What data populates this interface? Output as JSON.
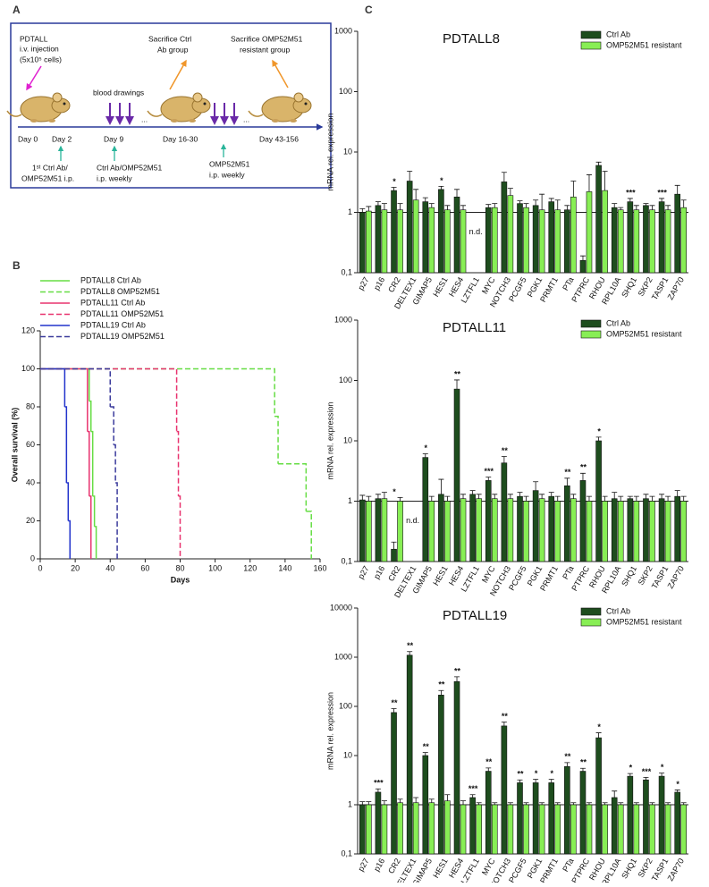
{
  "panel_labels": [
    "A",
    "B",
    "C"
  ],
  "diagram": {
    "injection": [
      "PDTALL",
      "i.v. injection",
      "(5x10⁵ cells)"
    ],
    "days": [
      "Day 0",
      "Day 2",
      "Day 9",
      "Day 16-30",
      "Day 43-156"
    ],
    "blood": "blood drawings",
    "ellipsis": [
      "...",
      "..."
    ],
    "sacrifice_ctrl": [
      "Sacrifice Ctrl",
      "Ab group"
    ],
    "sacrifice_omp": [
      "Sacrifice OMP52M51",
      "resistant group"
    ],
    "treatment_first": [
      "1ˢᵗ Ctrl Ab/",
      "OMP52M51 i.p."
    ],
    "treatment_weekly": [
      "Ctrl Ab/OMP52M51",
      "i.p. weekly"
    ],
    "treatment_omp": [
      "OMP52M51",
      "i.p. weekly"
    ]
  },
  "chart_data": [
    {
      "type": "line",
      "step": true,
      "xlabel": "Days",
      "ylabel": "Overall survival (%)",
      "xlim": [
        0,
        160
      ],
      "xticks": [
        0,
        20,
        40,
        60,
        80,
        100,
        120,
        140,
        160
      ],
      "ylim": [
        0,
        120
      ],
      "yticks": [
        0,
        20,
        40,
        60,
        80,
        100,
        120
      ],
      "series": [
        {
          "name": "PDTALL8 Ctrl Ab",
          "color": "#66dd44",
          "dashed": false,
          "x": [
            0,
            28,
            29,
            30,
            31,
            32
          ],
          "y": [
            100,
            83,
            67,
            33,
            17,
            0
          ]
        },
        {
          "name": "PDTALL8 OMP52M51",
          "color": "#66dd44",
          "dashed": true,
          "x": [
            0,
            134,
            136,
            152,
            155
          ],
          "y": [
            100,
            75,
            50,
            25,
            0
          ]
        },
        {
          "name": "PDTALL11 Ctrl Ab",
          "color": "#e8336f",
          "dashed": false,
          "x": [
            0,
            27,
            28,
            29
          ],
          "y": [
            100,
            67,
            33,
            0
          ]
        },
        {
          "name": "PDTALL11 OMP52M51",
          "color": "#e8336f",
          "dashed": true,
          "x": [
            0,
            78,
            79,
            80
          ],
          "y": [
            100,
            67,
            33,
            0
          ]
        },
        {
          "name": "PDTALL19 Ctrl Ab",
          "color": "#2233cc",
          "dashed": false,
          "x": [
            0,
            14,
            15,
            16,
            17
          ],
          "y": [
            100,
            80,
            40,
            20,
            0
          ]
        },
        {
          "name": "PDTALL19 OMP52M51",
          "color": "#3b3b9c",
          "dashed": true,
          "x": [
            0,
            40,
            42,
            43,
            44
          ],
          "y": [
            100,
            80,
            60,
            40,
            0
          ]
        }
      ]
    },
    {
      "type": "bar",
      "title": "PDTALL8",
      "ylabel": "mRNA rel. expression",
      "log_scale": true,
      "reference_line": 1,
      "ylim": [
        0.1,
        1000
      ],
      "yticks": [
        {
          "value": 0.1,
          "label": "0,1"
        },
        1,
        10,
        100,
        1000
      ],
      "categories": [
        "p27",
        "p16",
        "CR2",
        "DELTEX1",
        "GIMAP5",
        "HES1",
        "HES4",
        "LZTFL1",
        "MYC",
        "NOTCH3",
        "PCGF5",
        "PGK1",
        "PRMT1",
        "PTa",
        "PTPRC",
        "RHOU",
        "RPL10A",
        "SHQ1",
        "SKP2",
        "TASP1",
        "ZAP70"
      ],
      "series": [
        {
          "name": "Ctrl Ab",
          "color": "#1e4d1e",
          "values": [
            1.0,
            1.3,
            2.3,
            3.3,
            1.5,
            2.4,
            1.8,
            null,
            1.2,
            3.2,
            1.4,
            1.3,
            1.5,
            1.1,
            0.16,
            6.0,
            1.2,
            1.5,
            1.3,
            1.5,
            2.0
          ],
          "errors": [
            0.15,
            0.2,
            0.3,
            1.5,
            0.25,
            0.3,
            0.6,
            null,
            0.15,
            1.4,
            0.15,
            0.3,
            0.2,
            0.2,
            0.03,
            0.8,
            0.2,
            0.2,
            0.1,
            0.2,
            0.8
          ]
        },
        {
          "name": "OMP52M51 resistant",
          "color": "#88ee55",
          "values": [
            1.05,
            1.1,
            1.1,
            1.6,
            1.2,
            1.1,
            1.1,
            null,
            1.2,
            1.9,
            1.2,
            1.1,
            1.1,
            1.8,
            2.2,
            2.3,
            1.1,
            1.1,
            1.1,
            1.1,
            1.2
          ],
          "errors": [
            0.2,
            0.3,
            0.3,
            0.8,
            0.2,
            0.2,
            0.2,
            null,
            0.2,
            0.6,
            0.2,
            0.9,
            0.5,
            1.5,
            2.0,
            2.5,
            0.1,
            0.2,
            0.2,
            0.2,
            0.4
          ]
        }
      ],
      "significance": [
        null,
        null,
        "*",
        null,
        null,
        "*",
        null,
        null,
        null,
        null,
        null,
        null,
        null,
        null,
        null,
        null,
        null,
        "***",
        null,
        "***",
        null
      ],
      "annotations": [
        {
          "text": "n.d.",
          "category": "LZTFL1"
        }
      ]
    },
    {
      "type": "bar",
      "title": "PDTALL11",
      "ylabel": "mRNA rel. expression",
      "log_scale": true,
      "reference_line": 1,
      "ylim": [
        0.1,
        1000
      ],
      "yticks": [
        {
          "value": 0.1,
          "label": "0,1"
        },
        1,
        10,
        100,
        1000
      ],
      "categories": [
        "p27",
        "p16",
        "CR2",
        "DELTEX1",
        "GIMAP5",
        "HES1",
        "HES4",
        "LZTFL1",
        "MYC",
        "NOTCH3",
        "PCGF5",
        "PGK1",
        "PRMT1",
        "PTa",
        "PTPRC",
        "RHOU",
        "RPL10A",
        "SHQ1",
        "SKP2",
        "TASP1",
        "ZAP70"
      ],
      "series": [
        {
          "name": "Ctrl Ab",
          "color": "#1e4d1e",
          "values": [
            1.05,
            1.1,
            0.16,
            null,
            5.3,
            1.3,
            72,
            1.3,
            2.2,
            4.3,
            1.2,
            1.5,
            1.2,
            1.8,
            2.2,
            10,
            1.1,
            1.1,
            1.1,
            1.1,
            1.2
          ],
          "errors": [
            0.2,
            0.2,
            0.05,
            null,
            0.8,
            1.0,
            30,
            0.2,
            0.3,
            1.2,
            0.2,
            0.6,
            0.2,
            0.6,
            0.7,
            1.5,
            0.3,
            0.1,
            0.2,
            0.2,
            0.3
          ]
        },
        {
          "name": "OMP52M51 resistant",
          "color": "#88ee55",
          "values": [
            1.0,
            1.1,
            1.0,
            null,
            1.0,
            1.0,
            1.1,
            1.1,
            1.1,
            1.1,
            1.0,
            1.1,
            1.0,
            1.1,
            1.0,
            1.0,
            1.0,
            1.0,
            1.0,
            1.0,
            1.0
          ],
          "errors": [
            0.2,
            0.3,
            0.15,
            null,
            0.2,
            0.2,
            0.2,
            0.2,
            0.2,
            0.2,
            0.2,
            0.2,
            0.2,
            0.2,
            0.2,
            0.2,
            0.2,
            0.2,
            0.2,
            0.2,
            0.2
          ]
        }
      ],
      "significance": [
        null,
        null,
        "*",
        null,
        "*",
        null,
        "**",
        null,
        "***",
        "**",
        null,
        null,
        null,
        "**",
        "**",
        "*",
        null,
        null,
        null,
        null,
        null
      ],
      "annotations": [
        {
          "text": "n.d.",
          "category": "DELTEX1"
        }
      ]
    },
    {
      "type": "bar",
      "title": "PDTALL19",
      "ylabel": "mRNA rel. expression",
      "log_scale": true,
      "reference_line": 1,
      "ylim": [
        0.1,
        10000
      ],
      "yticks": [
        {
          "value": 0.1,
          "label": "0,1"
        },
        1,
        10,
        100,
        1000,
        10000
      ],
      "categories": [
        "p27",
        "p16",
        "CR2",
        "DELTEX1",
        "GIMAP5",
        "HES1",
        "HES4",
        "LZTFL1",
        "MYC",
        "NOTCH3",
        "PCGF5",
        "PGK1",
        "PRMT1",
        "PTa",
        "PTPRC",
        "RHOU",
        "RPL10A",
        "SHQ1",
        "SKP2",
        "TASP1",
        "ZAP70"
      ],
      "series": [
        {
          "name": "Ctrl Ab",
          "color": "#1e4d1e",
          "values": [
            1.0,
            1.8,
            75,
            1100,
            10,
            170,
            320,
            1.4,
            4.8,
            40,
            2.8,
            2.8,
            2.8,
            6.0,
            4.8,
            23,
            1.4,
            3.8,
            3.2,
            3.8,
            1.8
          ],
          "errors": [
            0.15,
            0.3,
            15,
            200,
            1.5,
            40,
            80,
            0.2,
            0.8,
            8,
            0.4,
            0.5,
            0.5,
            1.2,
            0.7,
            6,
            0.5,
            0.5,
            0.4,
            0.6,
            0.2
          ]
        },
        {
          "name": "OMP52M51 resistant",
          "color": "#88ee55",
          "values": [
            1.0,
            1.0,
            1.1,
            1.1,
            1.1,
            1.2,
            1.0,
            1.0,
            1.0,
            1.0,
            1.0,
            1.0,
            1.0,
            1.0,
            1.0,
            1.0,
            1.0,
            1.0,
            1.0,
            1.0,
            1.0
          ],
          "errors": [
            0.15,
            0.2,
            0.2,
            0.3,
            0.2,
            0.4,
            0.2,
            0.1,
            0.1,
            0.1,
            0.1,
            0.1,
            0.1,
            0.1,
            0.1,
            0.1,
            0.1,
            0.1,
            0.1,
            0.1,
            0.1
          ]
        }
      ],
      "significance": [
        null,
        "***",
        "**",
        "**",
        "**",
        "**",
        "**",
        "***",
        "**",
        "**",
        "**",
        "*",
        "*",
        "**",
        "**",
        "*",
        null,
        "*",
        "***",
        "*",
        "*"
      ]
    }
  ]
}
